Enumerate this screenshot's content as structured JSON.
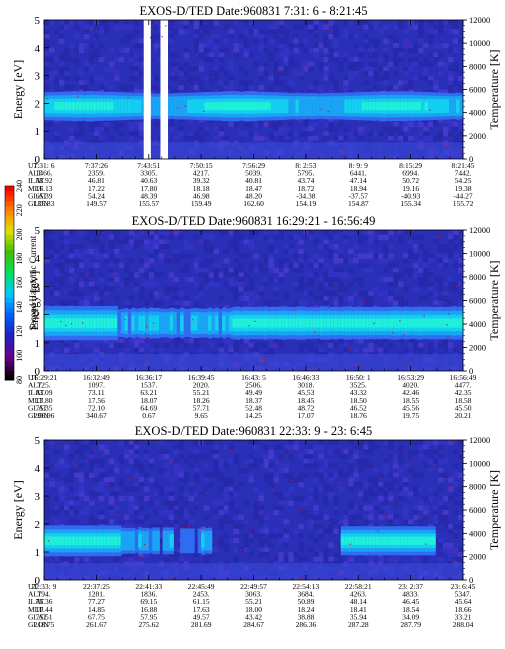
{
  "colorbar": {
    "title": "Second Harmonic Current",
    "ticks": [
      "80",
      "100",
      "120",
      "140",
      "160",
      "180",
      "200",
      "220",
      "240"
    ],
    "colors": [
      "#000000",
      "#6a0090",
      "#2020c0",
      "#0060ff",
      "#00c8ff",
      "#00e060",
      "#40c000",
      "#e0e000",
      "#ff8000",
      "#ff0000"
    ]
  },
  "row_labels": [
    "UT",
    "ALT",
    "ILAT",
    "MLT",
    "GLAT",
    "GLON"
  ],
  "chart_data": [
    {
      "type": "heatmap",
      "title": "EXOS-D/TED   Date:960831   7:31: 6 - 8:21:45",
      "ylabel": "Energy [eV]",
      "y2label": "Temperature [K]",
      "ylim": [
        0,
        5
      ],
      "y2lim": [
        0,
        12000
      ],
      "yticks": [
        "0",
        "1",
        "2",
        "3",
        "4",
        "5"
      ],
      "y2ticks": [
        "0",
        "2000",
        "4000",
        "6000",
        "8000",
        "10000",
        "12000"
      ],
      "band": {
        "center": 1.9,
        "width": 1.0
      },
      "data_gaps": [
        [
          0.238,
          0.255
        ],
        [
          0.278,
          0.296
        ]
      ],
      "columns": [
        {
          "UT": "7:31: 6",
          "ALT": "1466.",
          "ILAT": "58.92",
          "MLT": "16.13",
          "GLAT": "65.39",
          "GLON": "135.83"
        },
        {
          "UT": "7:37:26",
          "ALT": "2359.",
          "ILAT": "46.81",
          "MLT": "17.22",
          "GLAT": "54.24",
          "GLON": "149.57"
        },
        {
          "UT": "7:43:51",
          "ALT": "3305.",
          "ILAT": "40.63",
          "MLT": "17.80",
          "GLAT": "48.39",
          "GLON": "155.57"
        },
        {
          "UT": "7:50:15",
          "ALT": "4217.",
          "ILAT": "39.32",
          "MLT": "18.18",
          "GLAT": "46.98",
          "GLON": "159.49"
        },
        {
          "UT": "7:56:29",
          "ALT": "5039.",
          "ILAT": "40.81",
          "MLT": "18.47",
          "GLAT": "48.20",
          "GLON": "162.60"
        },
        {
          "UT": "8: 2:53",
          "ALT": "5795.",
          "ILAT": "43.74",
          "MLT": "18.72",
          "GLAT": "-34.38",
          "GLON": "154.19"
        },
        {
          "UT": "8: 9: 9",
          "ALT": "6441.",
          "ILAT": "47.14",
          "MLT": "18.94",
          "GLAT": "-37.57",
          "GLON": "154.87"
        },
        {
          "UT": "8:15:29",
          "ALT": "6994.",
          "ILAT": "50.72",
          "MLT": "19.16",
          "GLAT": "-40.93",
          "GLON": "155.34"
        },
        {
          "UT": "8:21:45",
          "ALT": "7442.",
          "ILAT": "54.25",
          "MLT": "19.38",
          "GLAT": "-44.27",
          "GLON": "155.72"
        }
      ]
    },
    {
      "type": "heatmap",
      "title": "EXOS-D/TED   Date:960831   16:29:21 - 16:56:49",
      "ylabel": "Energy [eV]",
      "y2label": "Temperature [K]",
      "ylim": [
        0,
        5
      ],
      "y2lim": [
        0,
        12000
      ],
      "yticks": [
        "0",
        "1",
        "2",
        "3",
        "4",
        "5"
      ],
      "y2ticks": [
        "0",
        "2000",
        "4000",
        "6000",
        "8000",
        "10000",
        "12000"
      ],
      "band": {
        "center": 1.7,
        "width": 1.1
      },
      "data_gaps": [],
      "columns": [
        {
          "UT": "16:29:21",
          "ALT": "725.",
          "ILAT": "83.09",
          "MLT": "13.80",
          "GLAT": "75.35",
          "GLON": "296.96"
        },
        {
          "UT": "16:32:49",
          "ALT": "1097.",
          "ILAT": "73.11",
          "MLT": "17.56",
          "GLAT": "72.10",
          "GLON": "340.67"
        },
        {
          "UT": "16:36:17",
          "ALT": "1537.",
          "ILAT": "63.21",
          "MLT": "18.07",
          "GLAT": "64.69",
          "GLON": "0.67"
        },
        {
          "UT": "16:39:45",
          "ALT": "2020.",
          "ILAT": "55.21",
          "MLT": "18.26",
          "GLAT": "57.71",
          "GLON": "9.65"
        },
        {
          "UT": "16:43: 5",
          "ALT": "2506.",
          "ILAT": "49.49",
          "MLT": "18.37",
          "GLAT": "52.48",
          "GLON": "14.25"
        },
        {
          "UT": "16:46:33",
          "ALT": "3018.",
          "ILAT": "45.53",
          "MLT": "18.45",
          "GLAT": "48.72",
          "GLON": "17.07"
        },
        {
          "UT": "16:50: 1",
          "ALT": "3525.",
          "ILAT": "43.32",
          "MLT": "18.50",
          "GLAT": "46.52",
          "GLON": "18.76"
        },
        {
          "UT": "16:53:29",
          "ALT": "4020.",
          "ILAT": "42.46",
          "MLT": "18.55",
          "GLAT": "45.56",
          "GLON": "19.75"
        },
        {
          "UT": "16:56:49",
          "ALT": "4477.",
          "ILAT": "42.35",
          "MLT": "18.58",
          "GLAT": "45.50",
          "GLON": "20.21"
        }
      ]
    },
    {
      "type": "heatmap",
      "title": "EXOS-D/TED   Date:960831   22:33: 9 - 23: 6:45",
      "ylabel": "Energy [eV]",
      "y2label": "Temperature [K]",
      "ylim": [
        0,
        5
      ],
      "y2lim": [
        0,
        12000
      ],
      "yticks": [
        "0",
        "1",
        "2",
        "3",
        "4",
        "5"
      ],
      "y2ticks": [
        "0",
        "2000",
        "4000",
        "6000",
        "8000",
        "10000",
        "12000"
      ],
      "band": {
        "center": 1.4,
        "width": 1.0
      },
      "data_gaps": [],
      "columns": [
        {
          "UT": "22:33: 9",
          "ALT": "794.",
          "ILAT": "76.36",
          "MLT": "10.44",
          "GLAT": "75.51",
          "GLON": "218.75"
        },
        {
          "UT": "22:37:25",
          "ALT": "1281.",
          "ILAT": "77.27",
          "MLT": "14.85",
          "GLAT": "67.75",
          "GLON": "261.67"
        },
        {
          "UT": "22:41:33",
          "ALT": "1836.",
          "ILAT": "69.15",
          "MLT": "16.88",
          "GLAT": "57.95",
          "GLON": "275.62"
        },
        {
          "UT": "22:45:49",
          "ALT": "2453.",
          "ILAT": "61.15",
          "MLT": "17.63",
          "GLAT": "49.57",
          "GLON": "281.69"
        },
        {
          "UT": "22:49:57",
          "ALT": "3063.",
          "ILAT": "55.21",
          "MLT": "18.00",
          "GLAT": "43.42",
          "GLON": "284.67"
        },
        {
          "UT": "22:54:13",
          "ALT": "3684.",
          "ILAT": "50.89",
          "MLT": "18.24",
          "GLAT": "38.88",
          "GLON": "286.36"
        },
        {
          "UT": "22:58:21",
          "ALT": "4263.",
          "ILAT": "48.14",
          "MLT": "18.41",
          "GLAT": "35.94",
          "GLON": "287.28"
        },
        {
          "UT": "23: 2:37",
          "ALT": "4833.",
          "ILAT": "46.45",
          "MLT": "18.54",
          "GLAT": "34.09",
          "GLON": "287.79"
        },
        {
          "UT": "23: 6:45",
          "ALT": "5347.",
          "ILAT": "45.64",
          "MLT": "18.66",
          "GLAT": "33.21",
          "GLON": "288.04"
        }
      ]
    }
  ]
}
